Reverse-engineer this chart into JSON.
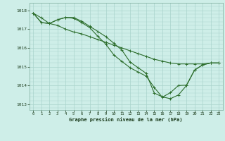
{
  "title": "Graphe pression niveau de la mer (hPa)",
  "bg_color": "#ceeee8",
  "grid_color": "#aad4cc",
  "line_color": "#2d6e2d",
  "ylim": [
    1012.7,
    1018.4
  ],
  "xlim": [
    -0.5,
    23.5
  ],
  "yticks": [
    1013,
    1014,
    1015,
    1016,
    1017,
    1018
  ],
  "xticks": [
    0,
    1,
    2,
    3,
    4,
    5,
    6,
    7,
    8,
    9,
    10,
    11,
    12,
    13,
    14,
    15,
    16,
    17,
    18,
    19,
    20,
    21,
    22,
    23
  ],
  "line1_x": [
    0,
    1,
    2,
    3,
    4,
    5,
    6,
    7,
    8,
    9,
    10,
    11,
    12,
    13,
    14,
    15,
    16,
    17,
    18,
    19,
    20,
    21,
    22,
    23
  ],
  "line1_y": [
    1017.85,
    1017.6,
    1017.3,
    1017.2,
    1017.0,
    1016.85,
    1016.75,
    1016.6,
    1016.45,
    1016.3,
    1016.15,
    1016.0,
    1015.85,
    1015.7,
    1015.55,
    1015.4,
    1015.3,
    1015.2,
    1015.15,
    1015.15,
    1015.15,
    1015.15,
    1015.2,
    1015.2
  ],
  "line2_x": [
    0,
    1,
    2,
    3,
    4,
    5,
    6,
    7,
    8,
    9,
    10,
    11,
    12,
    13,
    14,
    15,
    16,
    17,
    18,
    19,
    20,
    21,
    22,
    23
  ],
  "line2_y": [
    1017.85,
    1017.35,
    1017.3,
    1017.5,
    1017.62,
    1017.62,
    1017.42,
    1017.15,
    1016.88,
    1016.6,
    1016.25,
    1015.88,
    1015.25,
    1014.95,
    1014.65,
    1013.6,
    1013.4,
    1013.3,
    1013.5,
    1014.0,
    1014.82,
    1015.1,
    1015.2,
    1015.2
  ],
  "line3_x": [
    0,
    1,
    2,
    3,
    4,
    5,
    6,
    7,
    8,
    9,
    10,
    11,
    12,
    13,
    14,
    15,
    16,
    17,
    18,
    19,
    20,
    21,
    22,
    23
  ],
  "line3_y": [
    1017.85,
    1017.35,
    1017.3,
    1017.5,
    1017.62,
    1017.58,
    1017.35,
    1017.08,
    1016.62,
    1016.2,
    1015.62,
    1015.28,
    1014.95,
    1014.72,
    1014.5,
    1013.9,
    1013.38,
    1013.62,
    1014.0,
    1014.02,
    1014.82,
    1015.1,
    1015.2,
    1015.2
  ],
  "figwidth": 3.2,
  "figheight": 2.0,
  "dpi": 100
}
